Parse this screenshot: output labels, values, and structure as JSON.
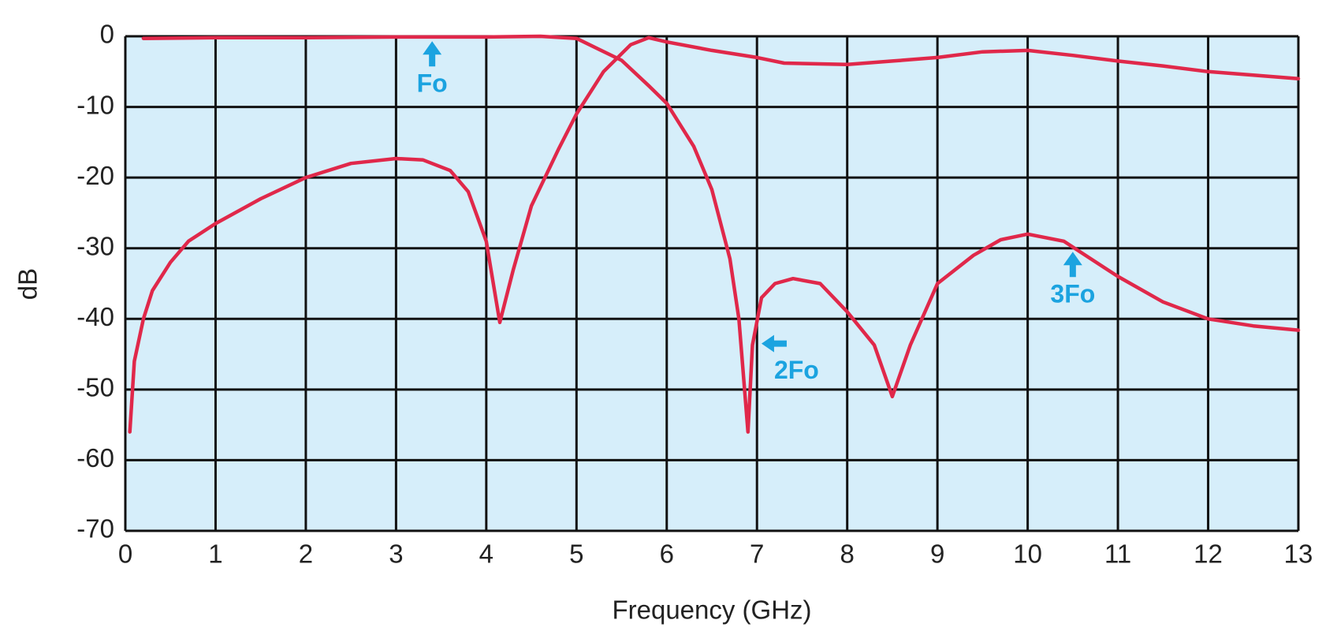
{
  "chart_data": {
    "type": "line",
    "xlabel": "Frequency (GHz)",
    "ylabel": "dB",
    "xlim": [
      0,
      13
    ],
    "ylim": [
      -70,
      0
    ],
    "xticks": [
      0,
      1,
      2,
      3,
      4,
      5,
      6,
      7,
      8,
      9,
      10,
      11,
      12,
      13
    ],
    "yticks": [
      0,
      -10,
      -20,
      -30,
      -40,
      -50,
      -60,
      -70
    ],
    "grid": true,
    "background": "#d6eefa",
    "series": [
      {
        "color": "#e0284a",
        "x": [
          0.2,
          1,
          2,
          3,
          4,
          4.6,
          5,
          5.5,
          5.8,
          6,
          6.3,
          6.5,
          6.7,
          6.8,
          6.9,
          6.95,
          7.05,
          7.2,
          7.4,
          7.7,
          8,
          8.3,
          8.5,
          8.7,
          9,
          9.4,
          9.7,
          10,
          10.4,
          10.7,
          11,
          11.5,
          12,
          12.5,
          13
        ],
        "values": [
          -0.3,
          -0.2,
          -0.2,
          -0.1,
          -0.1,
          0,
          -0.3,
          -3.4,
          -7,
          -9.5,
          -15.6,
          -21.7,
          -31.5,
          -40,
          -56,
          -43.7,
          -37,
          -35,
          -34.3,
          -35,
          -39,
          -43.7,
          -51,
          -43.7,
          -35,
          -31,
          -28.8,
          -28,
          -29,
          -31.5,
          -34,
          -37.6,
          -40,
          -41,
          -41.6
        ]
      },
      {
        "color": "#e0284a",
        "x": [
          0.05,
          0.1,
          0.2,
          0.3,
          0.5,
          0.7,
          1,
          1.5,
          2,
          2.5,
          3,
          3.3,
          3.6,
          3.8,
          4,
          4.15,
          4.3,
          4.5,
          4.8,
          5,
          5.3,
          5.6,
          5.8,
          6,
          6.5,
          7,
          7.3,
          8,
          8.5,
          9,
          9.5,
          10,
          10.5,
          11,
          11.5,
          12,
          12.5,
          13
        ],
        "values": [
          -56,
          -46,
          -40,
          -36,
          -32,
          -29,
          -26.5,
          -23,
          -20,
          -18,
          -17.3,
          -17.5,
          -19,
          -22,
          -29,
          -40.5,
          -33,
          -24,
          -16,
          -11,
          -5,
          -1.2,
          -0.2,
          -0.8,
          -2,
          -3,
          -3.8,
          -4,
          -3.5,
          -3,
          -2.2,
          -2,
          -2.7,
          -3.5,
          -4.2,
          -5,
          -5.5,
          -6
        ]
      }
    ],
    "annotation_color": "#1ba3e0",
    "annotations": [
      {
        "text": "Fo",
        "x": 3.4,
        "y": -0.7,
        "direction": "up"
      },
      {
        "text": "2Fo",
        "x": 7.05,
        "y": -43.5,
        "direction": "left"
      },
      {
        "text": "3Fo",
        "x": 10.5,
        "y": -30.5,
        "direction": "up"
      }
    ]
  }
}
